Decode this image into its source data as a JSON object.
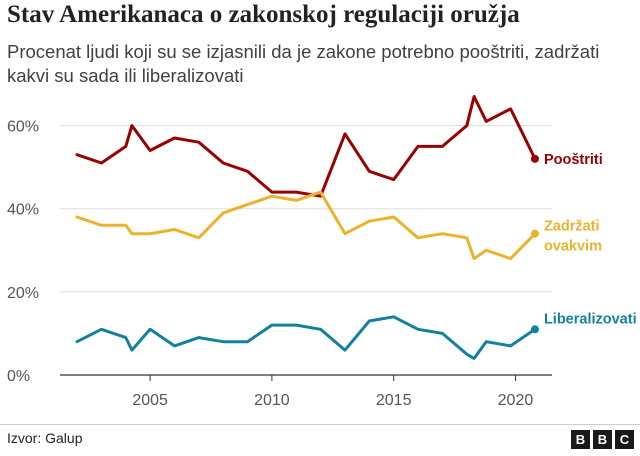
{
  "title": "Stav Amerikanaca o zakonskoj regulaciji oružja",
  "subtitle": "Procenat ljudi koji su se izjasnili da je zakone potrebno pooštriti, zadržati kakvi su sada ili liberalizovati",
  "source": "Izvor: Galup",
  "logo_letters": [
    "B",
    "B",
    "C"
  ],
  "chart_data": {
    "type": "line",
    "title": "Stav Amerikanaca o zakonskoj regulaciji oružja",
    "subtitle": "Procenat ljudi koji su se izjasnili da je zakone potrebno pooštriti, zadržati kakvi su sada ili liberalizovati",
    "xlabel": "",
    "ylabel": "",
    "xlim": [
      2001.3,
      2021.5
    ],
    "ylim": [
      0,
      70
    ],
    "x_ticks": [
      2005,
      2010,
      2015,
      2020
    ],
    "x_tick_labels": [
      "2005",
      "2010",
      "2015",
      "2020"
    ],
    "y_ticks": [
      0,
      20,
      40,
      60
    ],
    "y_tick_labels": [
      "0%",
      "20%",
      "40%",
      "60%"
    ],
    "grid": "horizontal",
    "legend": "inline-right",
    "series": [
      {
        "name": "Pooštriti",
        "color": "#990000",
        "x": [
          2002,
          2003,
          2004,
          2004.25,
          2005,
          2006,
          2007,
          2008,
          2009,
          2010,
          2011,
          2012,
          2013,
          2014,
          2015,
          2016,
          2017,
          2018,
          2018.3,
          2018.8,
          2019.8,
          2020.8
        ],
        "y": [
          53,
          51,
          55,
          60,
          54,
          57,
          56,
          51,
          49,
          44,
          44,
          43,
          58,
          49,
          47,
          55,
          55,
          60,
          67,
          61,
          64,
          52
        ]
      },
      {
        "name": "Zadržati ovakvim",
        "color": "#ebb22e",
        "x": [
          2002,
          2003,
          2004,
          2004.25,
          2005,
          2006,
          2007,
          2008,
          2009,
          2010,
          2011,
          2012,
          2013,
          2014,
          2015,
          2016,
          2017,
          2018,
          2018.3,
          2018.8,
          2019.8,
          2020.8
        ],
        "y": [
          38,
          36,
          36,
          34,
          34,
          35,
          33,
          39,
          41,
          43,
          42,
          44,
          34,
          37,
          38,
          33,
          34,
          33,
          28,
          30,
          28,
          34
        ]
      },
      {
        "name": "Liberalizovati",
        "color": "#1380a1",
        "x": [
          2002,
          2003,
          2004,
          2004.25,
          2005,
          2006,
          2007,
          2008,
          2009,
          2010,
          2011,
          2012,
          2013,
          2014,
          2015,
          2016,
          2017,
          2018,
          2018.3,
          2018.8,
          2019.8,
          2020.8
        ],
        "y": [
          8,
          11,
          9,
          6,
          11,
          7,
          9,
          8,
          8,
          12,
          12,
          11,
          6,
          13,
          14,
          11,
          10,
          5,
          4,
          8,
          7,
          11
        ]
      }
    ],
    "series_labels": [
      [
        "Pooštriti"
      ],
      [
        "Zadržati",
        "ovakvim"
      ],
      [
        "Liberalizovati"
      ]
    ]
  }
}
